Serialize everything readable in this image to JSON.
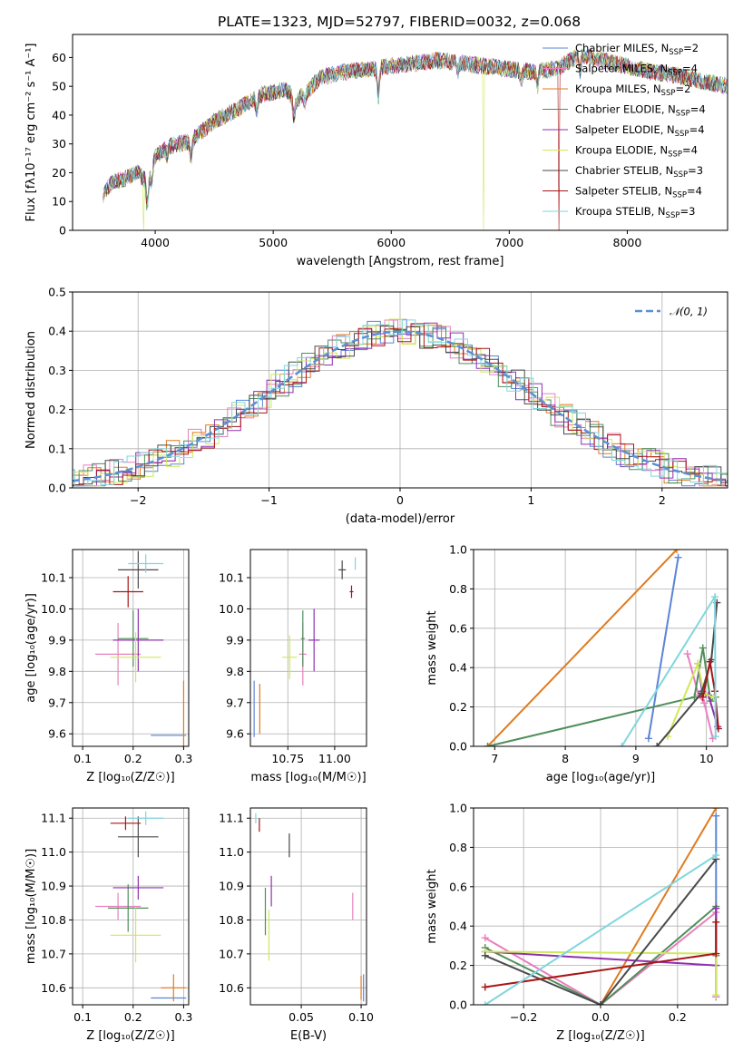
{
  "title": "PLATE=1323, MJD=52797, FIBERID=0032, z=0.068",
  "colors": {
    "chabrier_miles": "#5b84d6",
    "salpeter_miles": "#e87fbf",
    "kroupa_miles": "#e07b20",
    "chabrier_elodie": "#4e8f5a",
    "salpeter_elodie": "#8f30b0",
    "kroupa_elodie": "#cfe85a",
    "chabrier_stelib": "#4a4a4a",
    "salpeter_stelib": "#a81616",
    "kroupa_stelib": "#80d6de",
    "normal": "#5b8fd6"
  },
  "chart_data": [
    {
      "id": "spectrum",
      "type": "line",
      "xlabel": "wavelength [Angstrom, rest frame]",
      "ylabel": "Flux [fλ10⁻¹⁷ erg cm⁻² s⁻¹ A⁻¹]",
      "xlim": [
        3300,
        8850
      ],
      "ylim": [
        0,
        68
      ],
      "xticks": [
        "4000",
        "5000",
        "6000",
        "7000",
        "8000"
      ],
      "yticks": [
        "0",
        "10",
        "20",
        "30",
        "40",
        "50",
        "60"
      ],
      "grid": false,
      "legend_position": "top-right",
      "legend": [
        "Chabrier MILES, N_SSP=2",
        "Salpeter MILES, N_SSP=4",
        "Kroupa MILES, N_SSP=2",
        "Chabrier ELODIE, N_SSP=4",
        "Salpeter ELODIE, N_SSP=4",
        "Kroupa ELODIE, N_SSP=4",
        "Chabrier STELIB, N_SSP=3",
        "Salpeter STELIB, N_SSP=4",
        "Kroupa STELIB, N_SSP=3"
      ],
      "continuum": [
        [
          3560,
          12
        ],
        [
          3640,
          17
        ],
        [
          3750,
          18
        ],
        [
          3850,
          20
        ],
        [
          3930,
          17
        ],
        [
          3990,
          25
        ],
        [
          4100,
          29
        ],
        [
          4300,
          31
        ],
        [
          4500,
          38
        ],
        [
          4700,
          42
        ],
        [
          4900,
          47
        ],
        [
          5100,
          49
        ],
        [
          5200,
          45
        ],
        [
          5400,
          53
        ],
        [
          5600,
          55
        ],
        [
          5800,
          56
        ],
        [
          6000,
          57
        ],
        [
          6200,
          58
        ],
        [
          6400,
          59
        ],
        [
          6600,
          58
        ],
        [
          6800,
          57
        ],
        [
          7000,
          56
        ],
        [
          7200,
          55
        ],
        [
          7400,
          56
        ],
        [
          7600,
          61
        ],
        [
          7800,
          59
        ],
        [
          8000,
          57
        ],
        [
          8200,
          55
        ],
        [
          8400,
          54
        ],
        [
          8600,
          52
        ],
        [
          8850,
          50
        ]
      ],
      "absorption_lines": [
        [
          3934,
          9
        ],
        [
          3969,
          7
        ],
        [
          4102,
          3
        ],
        [
          4304,
          6
        ],
        [
          4861,
          5
        ],
        [
          5175,
          7
        ],
        [
          5270,
          3
        ],
        [
          5890,
          10
        ],
        [
          6563,
          3
        ],
        [
          7100,
          4
        ],
        [
          7240,
          5
        ],
        [
          7600,
          6
        ]
      ],
      "dropouts": [
        [
          3900,
          0,
          "#cfe85a"
        ],
        [
          6785,
          0,
          "#cfe85a"
        ],
        [
          7420,
          0,
          "#a81616"
        ]
      ]
    },
    {
      "id": "residual-histogram",
      "type": "bar",
      "xlabel": "(data-model)/error",
      "ylabel": "Normed distribution",
      "xlim": [
        -2.5,
        2.5
      ],
      "ylim": [
        0,
        0.5
      ],
      "xticks": [
        "−2",
        "−1",
        "0",
        "1",
        "2"
      ],
      "yticks": [
        "0.0",
        "0.1",
        "0.2",
        "0.3",
        "0.4",
        "0.5"
      ],
      "grid": true,
      "bin_width": 0.1,
      "legend_position": "top-right",
      "legend": [
        "𝒩(0, 1)"
      ],
      "normal": {
        "mean": 0,
        "sigma": 1
      }
    },
    {
      "id": "age-vs-Z",
      "type": "scatter",
      "xlabel": "Z [log₁₀(Z/Z☉)]",
      "ylabel": "age  [log₁₀(age/yr)]",
      "xlim": [
        0.08,
        0.31
      ],
      "ylim": [
        9.56,
        10.19
      ],
      "xticks": [
        "0.1",
        "0.2",
        "0.3"
      ],
      "yticks": [
        "9.6",
        "9.7",
        "9.8",
        "9.9",
        "10.0",
        "10.1"
      ],
      "grid": true,
      "points": [
        {
          "model": "chabrier_miles",
          "x": 0.27,
          "y": 9.595,
          "xerr": 0.035,
          "yerr": 0.0
        },
        {
          "model": "kroupa_miles",
          "x": 0.3,
          "y": 9.6,
          "xerr": 0.0,
          "yerr": 0.17
        },
        {
          "model": "salpeter_miles",
          "x": 0.17,
          "y": 9.855,
          "xerr": 0.045,
          "yerr": 0.1
        },
        {
          "model": "chabrier_elodie",
          "x": 0.2,
          "y": 9.905,
          "xerr": 0.03,
          "yerr": 0.09
        },
        {
          "model": "salpeter_elodie",
          "x": 0.21,
          "y": 9.9,
          "xerr": 0.05,
          "yerr": 0.1
        },
        {
          "model": "kroupa_elodie",
          "x": 0.205,
          "y": 9.845,
          "xerr": 0.05,
          "yerr": 0.08
        },
        {
          "model": "chabrier_stelib",
          "x": 0.21,
          "y": 10.125,
          "xerr": 0.04,
          "yerr": 0.06
        },
        {
          "model": "salpeter_stelib",
          "x": 0.19,
          "y": 10.055,
          "xerr": 0.03,
          "yerr": 0.05
        },
        {
          "model": "kroupa_stelib",
          "x": 0.225,
          "y": 10.145,
          "xerr": 0.035,
          "yerr": 0.03
        }
      ]
    },
    {
      "id": "age-vs-mass",
      "type": "scatter",
      "xlabel": "mass [log₁₀(M/M☉)]",
      "ylabel": "",
      "xlim": [
        10.55,
        11.17
      ],
      "ylim": [
        9.56,
        10.19
      ],
      "xticks": [
        "10.75",
        "11.00"
      ],
      "xtick_values": [
        10.75,
        11.0
      ],
      "yticks": [
        "9.6",
        "9.7",
        "9.8",
        "9.9",
        "10.0",
        "10.1"
      ],
      "grid": true,
      "points": [
        {
          "model": "chabrier_miles",
          "x": 10.57,
          "y": 9.68,
          "xerr": 0.0,
          "yerr": 0.09
        },
        {
          "model": "kroupa_miles",
          "x": 10.6,
          "y": 9.68,
          "xerr": 0.0,
          "yerr": 0.08
        },
        {
          "model": "salpeter_miles",
          "x": 10.83,
          "y": 9.855,
          "xerr": 0.02,
          "yerr": 0.1
        },
        {
          "model": "chabrier_elodie",
          "x": 10.83,
          "y": 9.905,
          "xerr": 0.01,
          "yerr": 0.09
        },
        {
          "model": "salpeter_elodie",
          "x": 10.89,
          "y": 9.9,
          "xerr": 0.03,
          "yerr": 0.1
        },
        {
          "model": "kroupa_elodie",
          "x": 10.76,
          "y": 9.845,
          "xerr": 0.04,
          "yerr": 0.07
        },
        {
          "model": "chabrier_stelib",
          "x": 11.04,
          "y": 10.125,
          "xerr": 0.02,
          "yerr": 0.03
        },
        {
          "model": "salpeter_stelib",
          "x": 11.09,
          "y": 10.055,
          "xerr": 0.01,
          "yerr": 0.02
        },
        {
          "model": "kroupa_stelib",
          "x": 11.11,
          "y": 10.145,
          "xerr": 0.0,
          "yerr": 0.02
        }
      ]
    },
    {
      "id": "massweight-vs-age",
      "type": "line",
      "xlabel": "age  [log₁₀(age/yr)]",
      "ylabel": "mass weight",
      "xlim": [
        6.7,
        10.3
      ],
      "ylim": [
        0,
        1.0
      ],
      "xticks": [
        "7",
        "8",
        "9",
        "10"
      ],
      "yticks": [
        "0.0",
        "0.2",
        "0.4",
        "0.6",
        "0.8",
        "1.0"
      ],
      "grid": true,
      "series": [
        {
          "model": "chabrier_miles",
          "points": [
            [
              9.18,
              0.04
            ],
            [
              9.6,
              0.96
            ]
          ]
        },
        {
          "model": "kroupa_miles",
          "points": [
            [
              6.9,
              0.0
            ],
            [
              9.58,
              1.0
            ]
          ]
        },
        {
          "model": "salpeter_miles",
          "points": [
            [
              9.73,
              0.47
            ],
            [
              9.89,
              0.26
            ],
            [
              9.97,
              0.22
            ],
            [
              10.09,
              0.04
            ]
          ]
        },
        {
          "model": "chabrier_elodie",
          "points": [
            [
              6.9,
              0.0
            ],
            [
              9.83,
              0.25
            ],
            [
              9.95,
              0.5
            ],
            [
              10.06,
              0.23
            ],
            [
              10.13,
              0.25
            ]
          ]
        },
        {
          "model": "salpeter_elodie",
          "points": [
            [
              9.88,
              0.42
            ],
            [
              9.94,
              0.28
            ],
            [
              10.03,
              0.26
            ],
            [
              10.16,
              0.1
            ]
          ]
        },
        {
          "model": "kroupa_elodie",
          "points": [
            [
              9.45,
              0.05
            ],
            [
              9.88,
              0.42
            ],
            [
              9.96,
              0.27
            ],
            [
              10.1,
              0.25
            ]
          ]
        },
        {
          "model": "chabrier_stelib",
          "points": [
            [
              9.3,
              0.0
            ],
            [
              9.93,
              0.27
            ],
            [
              10.07,
              0.44
            ],
            [
              10.15,
              0.73
            ]
          ]
        },
        {
          "model": "salpeter_stelib",
          "points": [
            [
              9.95,
              0.25
            ],
            [
              10.05,
              0.43
            ],
            [
              10.12,
              0.28
            ],
            [
              10.17,
              0.09
            ]
          ]
        },
        {
          "model": "kroupa_stelib",
          "points": [
            [
              8.8,
              0.0
            ],
            [
              10.12,
              0.76
            ],
            [
              10.13,
              0.05
            ]
          ]
        }
      ]
    },
    {
      "id": "mass-vs-Z",
      "type": "scatter",
      "xlabel": "Z [log₁₀(Z/Z☉)]",
      "ylabel": "mass [log₁₀(M/M☉)]",
      "xlim": [
        0.08,
        0.31
      ],
      "ylim": [
        10.55,
        11.13
      ],
      "xticks": [
        "0.1",
        "0.2",
        "0.3"
      ],
      "yticks": [
        "10.6",
        "10.7",
        "10.8",
        "10.9",
        "11.0",
        "11.1"
      ],
      "grid": true,
      "points": [
        {
          "model": "chabrier_miles",
          "x": 0.27,
          "y": 10.57,
          "xerr": 0.035,
          "yerr": 0.0
        },
        {
          "model": "kroupa_miles",
          "x": 0.28,
          "y": 10.6,
          "xerr": 0.025,
          "yerr": 0.04
        },
        {
          "model": "salpeter_miles",
          "x": 0.17,
          "y": 10.84,
          "xerr": 0.045,
          "yerr": 0.04
        },
        {
          "model": "chabrier_elodie",
          "x": 0.19,
          "y": 10.835,
          "xerr": 0.04,
          "yerr": 0.07
        },
        {
          "model": "salpeter_elodie",
          "x": 0.21,
          "y": 10.895,
          "xerr": 0.05,
          "yerr": 0.035
        },
        {
          "model": "kroupa_elodie",
          "x": 0.205,
          "y": 10.755,
          "xerr": 0.05,
          "yerr": 0.08
        },
        {
          "model": "chabrier_stelib",
          "x": 0.21,
          "y": 11.045,
          "xerr": 0.04,
          "yerr": 0.06
        },
        {
          "model": "salpeter_stelib",
          "x": 0.185,
          "y": 11.085,
          "xerr": 0.03,
          "yerr": 0.02
        },
        {
          "model": "kroupa_stelib",
          "x": 0.225,
          "y": 11.1,
          "xerr": 0.035,
          "yerr": 0.02
        }
      ]
    },
    {
      "id": "mass-vs-ebv",
      "type": "scatter",
      "xlabel": "E(B-V)",
      "ylabel": "",
      "xlim": [
        0.0075,
        0.1045
      ],
      "ylim": [
        10.55,
        11.13
      ],
      "xticks": [
        "0.05",
        "0.10"
      ],
      "xtick_values": [
        0.05,
        0.1
      ],
      "yticks": [
        "10.6",
        "10.7",
        "10.8",
        "10.9",
        "11.0",
        "11.1"
      ],
      "grid": true,
      "points": [
        {
          "model": "chabrier_miles",
          "x": 0.102,
          "y": 10.6,
          "xerr": 0.0,
          "yerr": 0.04
        },
        {
          "model": "kroupa_miles",
          "x": 0.1,
          "y": 10.6,
          "xerr": 0.0,
          "yerr": 0.035
        },
        {
          "model": "salpeter_miles",
          "x": 0.093,
          "y": 10.84,
          "xerr": 0.0,
          "yerr": 0.04
        },
        {
          "model": "chabrier_elodie",
          "x": 0.02,
          "y": 10.825,
          "xerr": 0.0,
          "yerr": 0.07
        },
        {
          "model": "salpeter_elodie",
          "x": 0.025,
          "y": 10.885,
          "xerr": 0.0,
          "yerr": 0.045
        },
        {
          "model": "kroupa_elodie",
          "x": 0.023,
          "y": 10.755,
          "xerr": 0.0,
          "yerr": 0.075
        },
        {
          "model": "chabrier_stelib",
          "x": 0.04,
          "y": 11.02,
          "xerr": 0.0,
          "yerr": 0.035
        },
        {
          "model": "salpeter_stelib",
          "x": 0.015,
          "y": 11.08,
          "xerr": 0.0,
          "yerr": 0.02
        },
        {
          "model": "kroupa_stelib",
          "x": 0.012,
          "y": 11.1,
          "xerr": 0.0,
          "yerr": 0.015
        }
      ]
    },
    {
      "id": "massweight-vs-Z",
      "type": "line",
      "xlabel": "Z [log₁₀(Z/Z☉)]",
      "ylabel": "mass weight",
      "xlim": [
        -0.33,
        0.33
      ],
      "ylim": [
        0,
        1.0
      ],
      "xticks": [
        "−0.2",
        "0.0",
        "0.2"
      ],
      "xtick_values": [
        -0.2,
        0.0,
        0.2
      ],
      "yticks": [
        "0.0",
        "0.2",
        "0.4",
        "0.6",
        "0.8",
        "1.0"
      ],
      "grid": true,
      "series": [
        {
          "model": "chabrier_miles",
          "points": [
            [
              0.3,
              0.04
            ],
            [
              0.3,
              0.96
            ]
          ]
        },
        {
          "model": "kroupa_miles",
          "points": [
            [
              0.0,
              0.0
            ],
            [
              0.3,
              1.0
            ]
          ]
        },
        {
          "model": "salpeter_miles",
          "points": [
            [
              -0.3,
              0.34
            ],
            [
              0.0,
              0.0
            ],
            [
              0.3,
              0.47
            ],
            [
              0.3,
              0.04
            ]
          ]
        },
        {
          "model": "chabrier_elodie",
          "points": [
            [
              -0.3,
              0.29
            ],
            [
              0.0,
              0.0
            ],
            [
              0.3,
              0.5
            ],
            [
              0.3,
              0.25
            ]
          ]
        },
        {
          "model": "salpeter_elodie",
          "points": [
            [
              -0.3,
              0.27
            ],
            [
              0.3,
              0.2
            ],
            [
              0.3,
              0.49
            ]
          ]
        },
        {
          "model": "kroupa_elodie",
          "points": [
            [
              -0.3,
              0.27
            ],
            [
              0.3,
              0.26
            ],
            [
              0.3,
              0.05
            ]
          ]
        },
        {
          "model": "chabrier_stelib",
          "points": [
            [
              -0.3,
              0.25
            ],
            [
              0.0,
              0.0
            ],
            [
              0.3,
              0.74
            ]
          ]
        },
        {
          "model": "salpeter_stelib",
          "points": [
            [
              -0.3,
              0.09
            ],
            [
              0.3,
              0.26
            ],
            [
              0.3,
              0.42
            ]
          ]
        },
        {
          "model": "kroupa_stelib",
          "points": [
            [
              -0.3,
              0.0
            ],
            [
              0.3,
              0.76
            ]
          ]
        }
      ]
    }
  ]
}
